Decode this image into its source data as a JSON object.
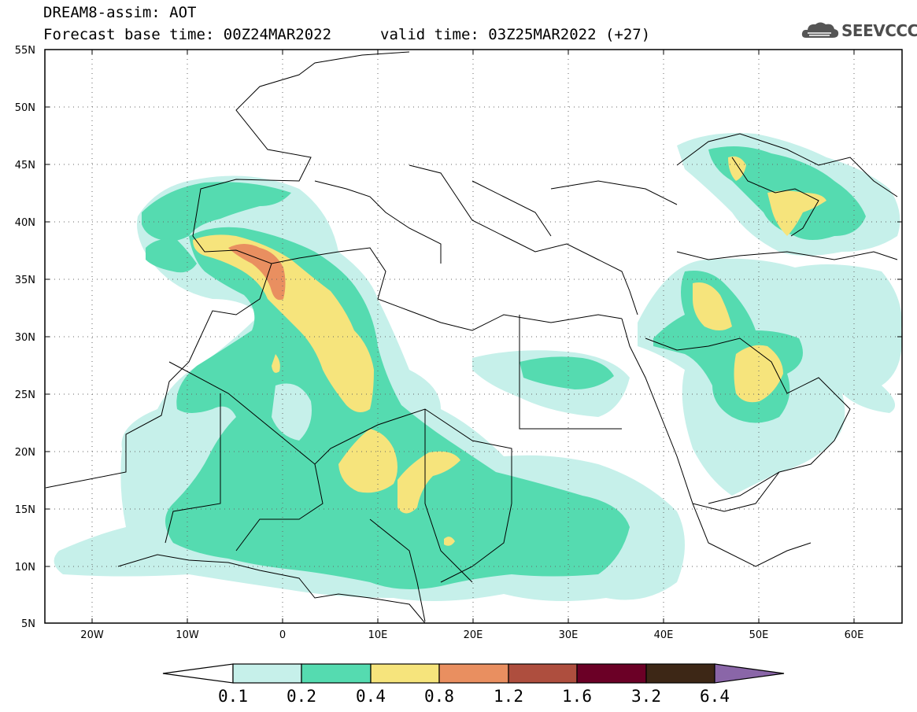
{
  "header": {
    "title_line1": "DREAM8-assim: AOT",
    "base_time": "Forecast base time: 00Z24MAR2022",
    "valid_time": "valid time: 03Z25MAR2022 (+27)",
    "logo_text": "SEEVCCC",
    "logo_icon": "cloud-logo-icon"
  },
  "map": {
    "lat_labels": [
      "55N",
      "50N",
      "45N",
      "40N",
      "35N",
      "30N",
      "25N",
      "20N",
      "15N",
      "10N",
      "5N"
    ],
    "lon_labels": [
      "20W",
      "10W",
      "0",
      "10E",
      "20E",
      "30E",
      "40E",
      "50E",
      "60E"
    ],
    "lon_range": [
      -25,
      65
    ],
    "lat_range": [
      5,
      55
    ],
    "colors": {
      "frame": "#000000",
      "grid": "#666666",
      "coast": "#000000"
    }
  },
  "colorbar": {
    "labels": [
      "0.1",
      "0.2",
      "0.4",
      "0.8",
      "1.2",
      "1.6",
      "3.2",
      "6.4"
    ],
    "colors": [
      "#c6f0ea",
      "#55dbb0",
      "#f6e47c",
      "#e98f60",
      "#ae4e3e",
      "#6b0026",
      "#3d2716",
      "#8a66a8"
    ],
    "under_color": "#ffffff",
    "over_color": "#8a66a8"
  }
}
